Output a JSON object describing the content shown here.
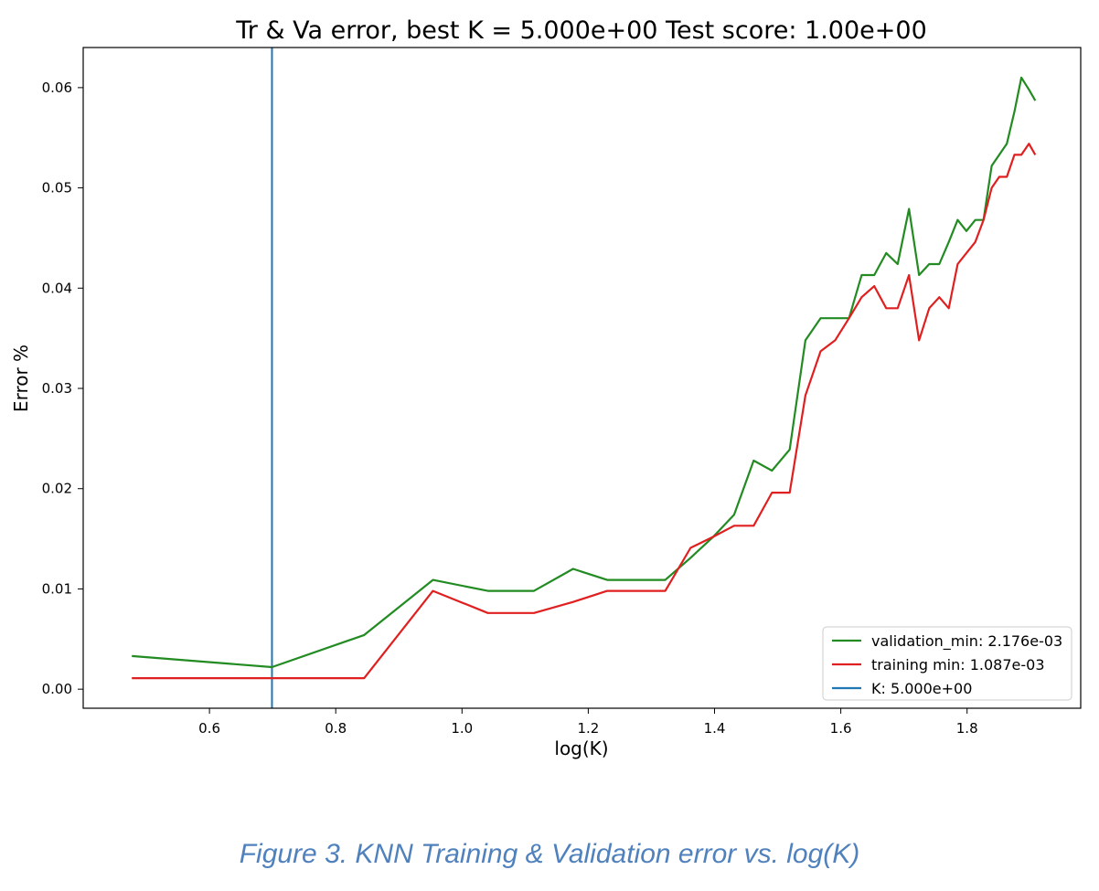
{
  "chart_data": {
    "type": "line",
    "title": "Tr & Va error, best K = 5.000e+00 Test score: 1.00e+00",
    "xlabel": "log(K)",
    "ylabel": "Error %",
    "xlim": [
      0.4,
      1.98
    ],
    "ylim": [
      -0.0019,
      0.064
    ],
    "xticks": [
      0.6,
      0.8,
      1.0,
      1.2,
      1.4,
      1.6,
      1.8
    ],
    "xtick_labels": [
      "0.6",
      "0.8",
      "1.0",
      "1.2",
      "1.4",
      "1.6",
      "1.8"
    ],
    "yticks": [
      0.0,
      0.01,
      0.02,
      0.03,
      0.04,
      0.05,
      0.06
    ],
    "ytick_labels": [
      "0.00",
      "0.01",
      "0.02",
      "0.03",
      "0.04",
      "0.05",
      "0.06"
    ],
    "grid": false,
    "legend_position": "lower-right",
    "series": [
      {
        "name": "validation_min: 2.176e-03",
        "color": "#228b22",
        "x": [
          0.477,
          0.699,
          0.845,
          0.954,
          1.041,
          1.114,
          1.176,
          1.23,
          1.279,
          1.322,
          1.362,
          1.398,
          1.431,
          1.462,
          1.491,
          1.519,
          1.544,
          1.568,
          1.591,
          1.613,
          1.633,
          1.653,
          1.672,
          1.69,
          1.708,
          1.724,
          1.74,
          1.756,
          1.771,
          1.785,
          1.799,
          1.813,
          1.826,
          1.839,
          1.851,
          1.863,
          1.875,
          1.886,
          1.898,
          1.908
        ],
        "y": [
          0.0033,
          0.0022,
          0.0054,
          0.0109,
          0.0098,
          0.0098,
          0.012,
          0.0109,
          0.0109,
          0.0109,
          0.0131,
          0.0152,
          0.0174,
          0.0228,
          0.0218,
          0.0239,
          0.0348,
          0.037,
          0.037,
          0.037,
          0.0413,
          0.0413,
          0.0435,
          0.0424,
          0.0479,
          0.0413,
          0.0424,
          0.0424,
          0.0446,
          0.0468,
          0.0457,
          0.0468,
          0.0468,
          0.0522,
          0.0533,
          0.0544,
          0.0576,
          0.061,
          0.0598,
          0.0587
        ]
      },
      {
        "name": "training min: 1.087e-03",
        "color": "#e02020",
        "x": [
          0.477,
          0.699,
          0.845,
          0.954,
          1.041,
          1.114,
          1.176,
          1.23,
          1.279,
          1.322,
          1.362,
          1.398,
          1.431,
          1.462,
          1.491,
          1.519,
          1.544,
          1.568,
          1.591,
          1.613,
          1.633,
          1.653,
          1.672,
          1.69,
          1.708,
          1.724,
          1.74,
          1.756,
          1.771,
          1.785,
          1.799,
          1.813,
          1.826,
          1.839,
          1.851,
          1.863,
          1.875,
          1.886,
          1.898,
          1.908
        ],
        "y": [
          0.0011,
          0.0011,
          0.0011,
          0.0098,
          0.0076,
          0.0076,
          0.0087,
          0.0098,
          0.0098,
          0.0098,
          0.0141,
          0.0152,
          0.0163,
          0.0163,
          0.0196,
          0.0196,
          0.0293,
          0.0337,
          0.0348,
          0.037,
          0.0391,
          0.0402,
          0.038,
          0.038,
          0.0413,
          0.0348,
          0.038,
          0.0391,
          0.038,
          0.0424,
          0.0435,
          0.0446,
          0.0468,
          0.05,
          0.0511,
          0.0511,
          0.0533,
          0.0533,
          0.0544,
          0.0533
        ]
      }
    ],
    "vline": {
      "name": "K: 5.000e+00",
      "x": 0.699,
      "color": "#1f77b4"
    }
  },
  "caption": "Figure 3. KNN Training & Validation error vs. log(K)"
}
